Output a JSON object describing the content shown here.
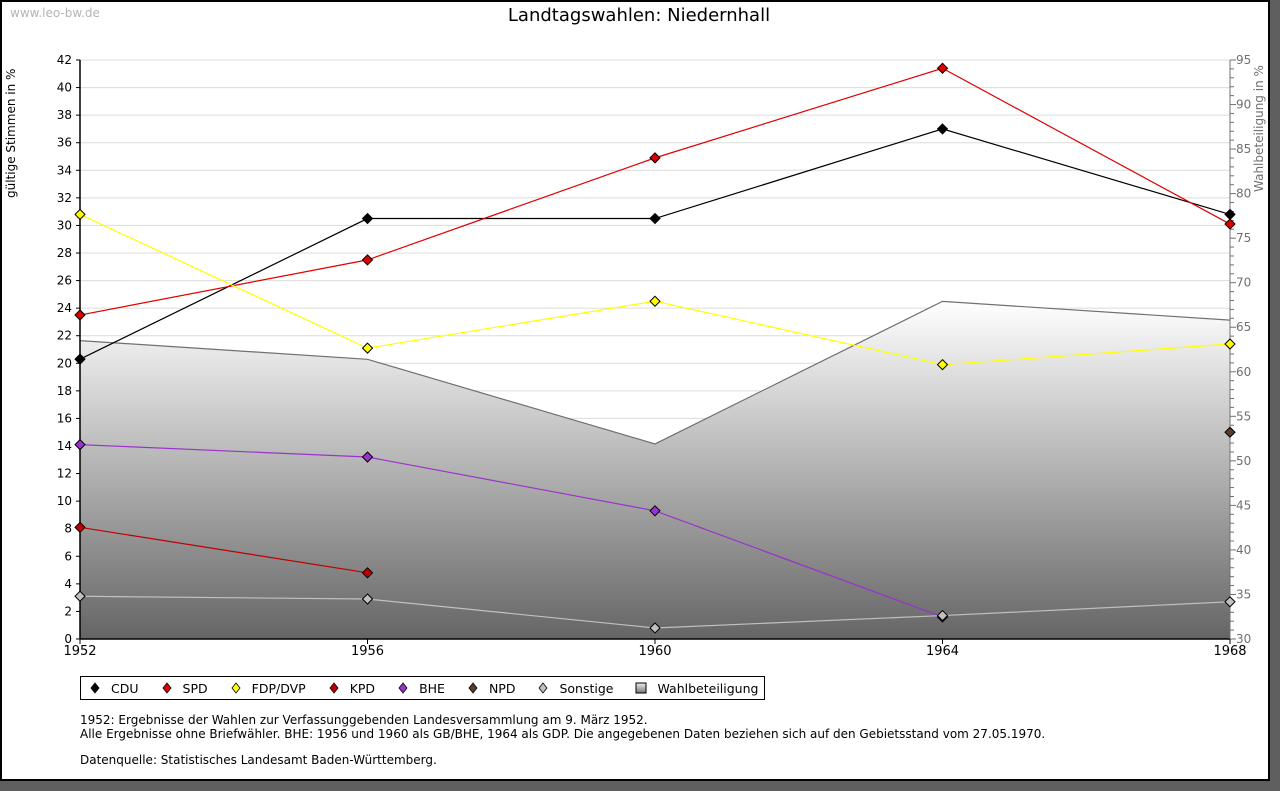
{
  "watermark": "www.leo-bw.de",
  "chart_data": {
    "type": "line",
    "title": "Landtagswahlen: Niedernhall",
    "xlabel": "",
    "ylabel": "gültige Stimmen in %",
    "ylabel_right": "Wahlbeteiligung in %",
    "categories": [
      "1952",
      "1956",
      "1960",
      "1964",
      "1968"
    ],
    "ylim": [
      0,
      42
    ],
    "yticks": [
      0,
      2,
      4,
      6,
      8,
      10,
      12,
      14,
      16,
      18,
      20,
      22,
      24,
      26,
      28,
      30,
      32,
      34,
      36,
      38,
      40,
      42
    ],
    "ylim_right": [
      30,
      95
    ],
    "yticks_right": [
      30,
      35,
      40,
      45,
      50,
      55,
      60,
      65,
      70,
      75,
      80,
      85,
      90,
      95
    ],
    "grid": true,
    "legend_position": "bottom-left",
    "series": [
      {
        "name": "CDU",
        "color": "#000000",
        "values": [
          20.3,
          30.5,
          30.5,
          37.0,
          30.8
        ]
      },
      {
        "name": "SPD",
        "color": "#e00000",
        "values": [
          23.5,
          27.5,
          34.9,
          41.4,
          30.1
        ]
      },
      {
        "name": "FDP/DVP",
        "color": "#ffff00",
        "values": [
          30.8,
          21.1,
          24.5,
          19.9,
          21.4
        ]
      },
      {
        "name": "KPD",
        "color": "#c00000",
        "values": [
          8.1,
          4.8,
          null,
          null,
          null
        ]
      },
      {
        "name": "BHE",
        "color": "#9933cc",
        "values": [
          14.1,
          13.2,
          9.3,
          1.6,
          null
        ]
      },
      {
        "name": "NPD",
        "color": "#5a3d2b",
        "values": [
          null,
          null,
          null,
          null,
          15.0
        ]
      },
      {
        "name": "Sonstige",
        "color": "#c0c0c0",
        "values": [
          3.1,
          2.9,
          0.8,
          1.7,
          2.7
        ]
      }
    ],
    "area_series": {
      "name": "Wahlbeteiligung",
      "axis": "right",
      "values": [
        63.5,
        61.4,
        51.9,
        67.9,
        65.8
      ]
    }
  },
  "legend": [
    {
      "label": "CDU",
      "color": "#000000",
      "shape": "diamond"
    },
    {
      "label": "SPD",
      "color": "#e00000",
      "shape": "diamond"
    },
    {
      "label": "FDP/DVP",
      "color": "#ffff00",
      "shape": "diamond"
    },
    {
      "label": "KPD",
      "color": "#c00000",
      "shape": "diamond"
    },
    {
      "label": "BHE",
      "color": "#9933cc",
      "shape": "diamond"
    },
    {
      "label": "NPD",
      "color": "#5a3d2b",
      "shape": "diamond"
    },
    {
      "label": "Sonstige",
      "color": "#c0c0c0",
      "shape": "diamond"
    },
    {
      "label": "Wahlbeteiligung",
      "color": "#a0a0a0",
      "shape": "square"
    }
  ],
  "notes": {
    "line1": "1952: Ergebnisse der Wahlen zur Verfassunggebenden Landesversammlung am 9. März 1952.",
    "line2": "Alle Ergebnisse ohne Briefwähler. BHE: 1956 und 1960 als GB/BHE, 1964 als GDP. Die angegebenen Daten beziehen sich auf den Gebietsstand vom 27.05.1970.",
    "line3": "Datenquelle: Statistisches Landesamt Baden-Württemberg."
  }
}
